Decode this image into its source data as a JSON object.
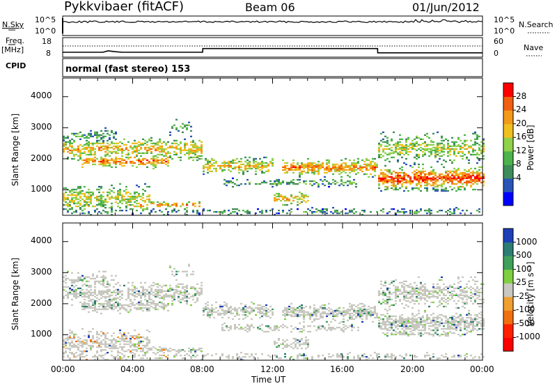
{
  "header": {
    "station": "Pykkvibaer (fitACF)",
    "beam": "Beam 06",
    "date": "01/Jun/2012"
  },
  "top_panels": {
    "nsky_label": "N.Sky",
    "nsky_ticks": [
      "10^5",
      "10^0"
    ],
    "nsearch_label": "N.Search",
    "nsearch_ticks": [
      "10^5",
      "10^0"
    ],
    "freq_label": "Freq.",
    "freq_unit": "[MHz]",
    "freq_ticks": [
      "18",
      "8"
    ],
    "nave_label": "Nave",
    "nave_ticks": [
      "60",
      "0"
    ],
    "cpid_label": "CPID",
    "cpid_value": "normal (fast stereo) 153"
  },
  "chart_data": [
    {
      "type": "heatmap",
      "name": "power",
      "ylabel": "Slant Range [km]",
      "xlabel": "Time UT",
      "ylim": [
        180,
        4600
      ],
      "yticks": [
        "1000",
        "2000",
        "3000",
        "4000"
      ],
      "xticks": [
        "00:00",
        "04:00",
        "08:00",
        "12:00",
        "16:00",
        "20:00",
        "00:00"
      ],
      "colorbar_label": "Power [dB]",
      "colorbar_ticks": [
        "4",
        "8",
        "12",
        "16",
        "20",
        "24",
        "28"
      ],
      "colorbar_colors": [
        "#0000ff",
        "#2a55b8",
        "#3f8c5a",
        "#4db34d",
        "#8fd14a",
        "#f0c020",
        "#f29a1a",
        "#f06010",
        "#ff0000"
      ]
    },
    {
      "type": "heatmap",
      "name": "velocity",
      "ylabel": "Slant Range [km]",
      "xlabel": "Time UT",
      "ylim": [
        180,
        4600
      ],
      "yticks": [
        "1000",
        "2000",
        "3000",
        "4000"
      ],
      "xticks": [
        "00:00",
        "04:00",
        "08:00",
        "12:00",
        "16:00",
        "20:00",
        "00:00"
      ],
      "colorbar_label": "Velocity [m s⁻¹]",
      "colorbar_ticks": [
        "1000",
        "500",
        "100",
        "25",
        "-25",
        "-100",
        "-500",
        "-1000"
      ],
      "colorbar_colors": [
        "#1f3fb8",
        "#2e7d74",
        "#3fa05a",
        "#7fcf40",
        "#c8c8c0",
        "#f0a030",
        "#f07010",
        "#ff2000",
        "#ff0000"
      ]
    }
  ],
  "freq_series": {
    "x_hours": [
      0,
      2.3,
      2.6,
      3.0,
      3.4,
      8.0,
      8.01,
      18.0,
      18.01,
      24
    ],
    "y_mhz": [
      10.5,
      10.5,
      11.2,
      10.8,
      10.5,
      10.5,
      12.4,
      12.4,
      10.2,
      10.2
    ]
  },
  "time_axis_label": "Time UT"
}
